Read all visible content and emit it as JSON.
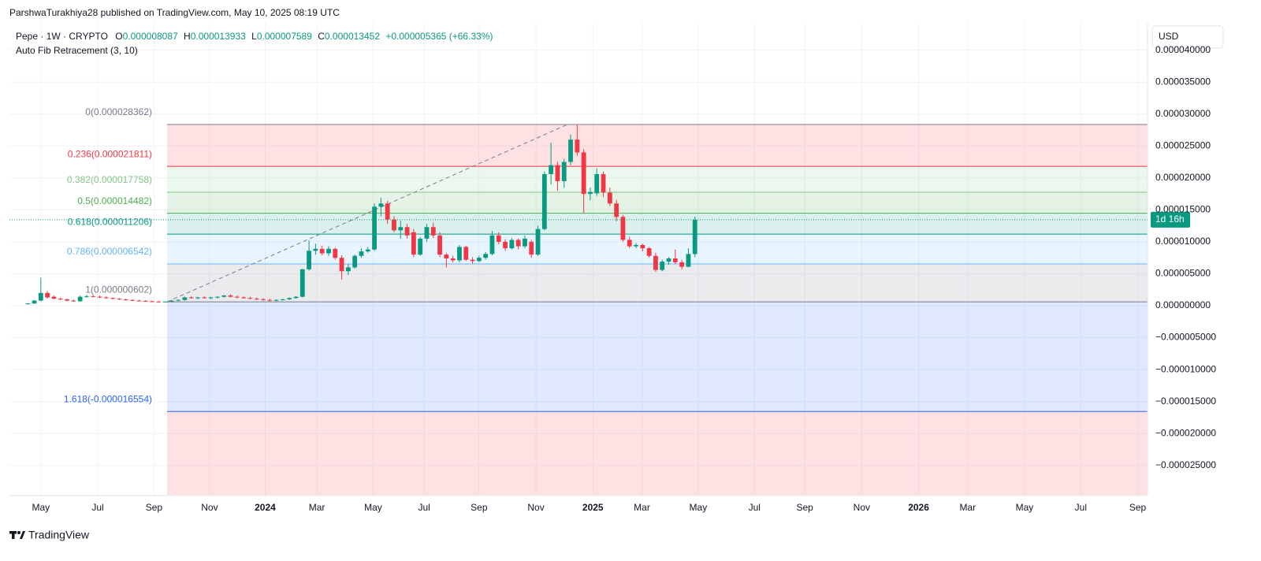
{
  "header": {
    "byline": "ParshwaTurakhiya28 published on TradingView.com, May 10, 2025 08:19 UTC",
    "symbol": "Pepe · 1W · CRYPTO",
    "ohlc": [
      {
        "key": "O",
        "value": "0.000008087"
      },
      {
        "key": "H",
        "value": "0.000013933"
      },
      {
        "key": "L",
        "value": "0.000007589"
      },
      {
        "key": "C",
        "value": "0.000013452"
      }
    ],
    "change": "+0.000005365 (+66.33%)",
    "indicator": "Auto Fib Retracement (3, 10)"
  },
  "currency": "USD",
  "countdown": "1d 16h",
  "brand": "TradingView",
  "chart_data": {
    "type": "candlestick",
    "up_color": "#089981",
    "down_color": "#f23645",
    "grid": true,
    "x": [
      -2,
      -1,
      0,
      1,
      2,
      3,
      4,
      5,
      6,
      7,
      8,
      9,
      10,
      11,
      12,
      13,
      14,
      15,
      16,
      17,
      18,
      19,
      20,
      21,
      22,
      23,
      24,
      25,
      26,
      27,
      28,
      29,
      30,
      31,
      32,
      33,
      34,
      35,
      36,
      37,
      38,
      39,
      40,
      41,
      42,
      43,
      44,
      45,
      46,
      47,
      48,
      49,
      50,
      51,
      52,
      53,
      54,
      55,
      56,
      57,
      58,
      59,
      60,
      61,
      62,
      63,
      64,
      65,
      66,
      67,
      68,
      69,
      70,
      71,
      72,
      73,
      74,
      75,
      76,
      77,
      78,
      79,
      80,
      81,
      82,
      83,
      84,
      85,
      86,
      87,
      88,
      89,
      90,
      91,
      92,
      93,
      94,
      95,
      96,
      97,
      98,
      99,
      100
    ],
    "open": [
      3e-07,
      3.5e-07,
      8e-07,
      2e-06,
      1.4e-06,
      1.1e-06,
      1e-06,
      8e-07,
      7e-07,
      1.4e-06,
      1.5e-06,
      1.4e-06,
      1.3e-06,
      1.2e-06,
      1.1e-06,
      1e-06,
      9e-07,
      8e-07,
      7.5e-07,
      7e-07,
      6.5e-07,
      6.2e-07,
      6.5e-07,
      8e-07,
      9e-07,
      1.3e-06,
      1.2e-06,
      1.3e-06,
      1.2e-06,
      1.3e-06,
      1.4e-06,
      1.6e-06,
      1.4e-06,
      1.3e-06,
      1.2e-06,
      1.1e-06,
      1e-06,
      9e-07,
      8e-07,
      9e-07,
      1e-06,
      1.2e-06,
      1.4e-06,
      5.7e-06,
      8.6e-06,
      8.9e-06,
      8.2e-06,
      8.9e-06,
      7.5e-06,
      5.4e-06,
      6e-06,
      7.8e-06,
      8.5e-06,
      8.8e-06,
      1.55e-05,
      1.6e-05,
      1.35e-05,
      1.18e-05,
      1.23e-05,
      1.15e-05,
      8e-06,
      1.05e-05,
      1.23e-05,
      1.1e-05,
      8e-06,
      7.4e-06,
      7.1e-06,
      9.2e-06,
      7.2e-06,
      7e-06,
      7.5e-06,
      8.1e-06,
      1.1e-05,
      1e-05,
      9e-06,
      1.03e-05,
      9.3e-06,
      1e-05,
      8e-06,
      1.2e-05,
      2.06e-05,
      2.2e-05,
      1.95e-05,
      2.25e-05,
      2.6e-05,
      2.4e-05,
      1.75e-05,
      1.76e-05,
      2.06e-05,
      1.77e-05,
      1.6e-05,
      1.39e-05,
      1.03e-05,
      9.3e-06,
      9.5e-06,
      9e-06,
      7.8e-06,
      5.6e-06,
      6.9e-06,
      7.4e-06,
      6.8e-06,
      6.1e-06,
      8.087e-06
    ],
    "high": [
      4e-07,
      9e-07,
      4.4e-06,
      2.3e-06,
      1.6e-06,
      1.3e-06,
      1.1e-06,
      1e-06,
      1.6e-06,
      1.7e-06,
      1.7e-06,
      1.6e-06,
      1.5e-06,
      1.3e-06,
      1.2e-06,
      1.1e-06,
      1e-06,
      9.5e-07,
      8.5e-07,
      8e-07,
      7.5e-07,
      7e-07,
      9e-07,
      1e-06,
      1.4e-06,
      1.5e-06,
      1.4e-06,
      1.5e-06,
      1.4e-06,
      1.5e-06,
      1.7e-06,
      1.8e-06,
      1.6e-06,
      1.5e-06,
      1.4e-06,
      1.3e-06,
      1.2e-06,
      1.1e-06,
      1e-06,
      1.1e-06,
      1.3e-06,
      1.5e-06,
      5.8e-06,
      1.02e-05,
      9.7e-06,
      9.4e-06,
      9.3e-06,
      9.1e-06,
      7.9e-06,
      6.5e-06,
      8e-06,
      9e-06,
      9.2e-06,
      1.6e-05,
      1.69e-05,
      1.64e-05,
      1.4e-05,
      1.33e-05,
      1.28e-05,
      1.2e-05,
      1.08e-05,
      1.28e-05,
      1.3e-05,
      1.15e-05,
      8.3e-06,
      7.8e-06,
      9.5e-06,
      9.4e-06,
      7.6e-06,
      7.8e-06,
      8.4e-06,
      1.17e-05,
      1.15e-05,
      1.04e-05,
      1.06e-05,
      1.05e-05,
      1.1e-05,
      1.03e-05,
      1.25e-05,
      2.1e-05,
      2.55e-05,
      2.25e-05,
      2.3e-05,
      2.68e-05,
      2.8362e-05,
      2.45e-05,
      1.85e-05,
      2.15e-05,
      2.1e-05,
      1.85e-05,
      1.66e-05,
      1.42e-05,
      1.08e-05,
      9.8e-06,
      9.7e-06,
      9.2e-06,
      8.3e-06,
      7.2e-06,
      7.6e-06,
      8.8e-06,
      7.2e-06,
      9e-06,
      1.3933e-05
    ],
    "low": [
      2e-07,
      3e-07,
      7e-07,
      1.1e-06,
      1e-06,
      9e-07,
      7e-07,
      6e-07,
      6e-07,
      1.2e-06,
      1.3e-06,
      1.2e-06,
      1.1e-06,
      1e-06,
      9e-07,
      8e-07,
      7e-07,
      7e-07,
      6e-07,
      5.5e-07,
      5.5e-07,
      6e-07,
      6e-07,
      7e-07,
      8e-07,
      1.1e-06,
      1e-06,
      1.1e-06,
      1e-06,
      1.1e-06,
      1.3e-06,
      1.3e-06,
      1.2e-06,
      1.1e-06,
      1e-06,
      9e-07,
      8e-07,
      7e-07,
      7e-07,
      8e-07,
      9e-07,
      1.1e-06,
      1.3e-06,
      5.5e-06,
      8e-06,
      7.9e-06,
      7.8e-06,
      7.2e-06,
      4.1e-06,
      4.8e-06,
      5.8e-06,
      7.5e-06,
      8.3e-06,
      8.6e-06,
      1.4e-05,
      1.28e-05,
      1.15e-05,
      1.05e-05,
      1.05e-05,
      7.6e-06,
      7.8e-06,
      1e-05,
      1.06e-05,
      7.6e-06,
      6e-06,
      6.8e-06,
      6.8e-06,
      7e-06,
      6.6e-06,
      6.8e-06,
      7.2e-06,
      7.9e-06,
      9.6e-06,
      8.6e-06,
      8.8e-06,
      8.8e-06,
      9e-06,
      7.5e-06,
      7.8e-06,
      1.18e-05,
      1.9e-05,
      1.8e-05,
      1.85e-05,
      2.2e-05,
      2.35e-05,
      1.45e-05,
      1.65e-05,
      1.72e-05,
      1.7e-05,
      1.56e-05,
      1.32e-05,
      1e-05,
      9e-06,
      9e-06,
      8.5e-06,
      7.5e-06,
      5.3e-06,
      5.4e-06,
      6.4e-06,
      6.5e-06,
      5.7e-06,
      6e-06,
      7.589e-06
    ],
    "close": [
      3.5e-07,
      8e-07,
      2e-06,
      1.3e-06,
      1.1e-06,
      1e-06,
      8e-07,
      7e-07,
      1.4e-06,
      1.5e-06,
      1.4e-06,
      1.3e-06,
      1.2e-06,
      1.1e-06,
      1e-06,
      9e-07,
      8e-07,
      7.5e-07,
      7e-07,
      6.5e-07,
      6.2e-07,
      6.5e-07,
      8e-07,
      9e-07,
      1.3e-06,
      1.2e-06,
      1.3e-06,
      1.2e-06,
      1.3e-06,
      1.4e-06,
      1.6e-06,
      1.4e-06,
      1.3e-06,
      1.2e-06,
      1.1e-06,
      1e-06,
      9e-07,
      8e-07,
      9e-07,
      1e-06,
      1.2e-06,
      1.4e-06,
      5.7e-06,
      8.6e-06,
      8.9e-06,
      8.2e-06,
      8.9e-06,
      7.5e-06,
      5.4e-06,
      6e-06,
      7.8e-06,
      8.5e-06,
      8.8e-06,
      1.55e-05,
      1.6e-05,
      1.35e-05,
      1.18e-05,
      1.23e-05,
      1.1e-05,
      8e-06,
      1.05e-05,
      1.23e-05,
      1.1e-05,
      8e-06,
      7.4e-06,
      7.1e-06,
      9.2e-06,
      7.2e-06,
      7e-06,
      7.5e-06,
      8.1e-06,
      1.1e-05,
      1e-05,
      9e-06,
      1.03e-05,
      9.3e-06,
      1.05e-05,
      8e-06,
      1.2e-05,
      2.06e-05,
      2.2e-05,
      1.95e-05,
      2.25e-05,
      2.6e-05,
      2.4e-05,
      1.75e-05,
      1.78e-05,
      2.06e-05,
      1.77e-05,
      1.6e-05,
      1.39e-05,
      1.03e-05,
      9.3e-06,
      9.5e-06,
      9e-06,
      7.8e-06,
      5.6e-06,
      6.9e-06,
      7.4e-06,
      6.8e-06,
      6.1e-06,
      8.1e-06,
      1.3452e-05
    ],
    "xlim": [
      -4.8,
      169.2
    ],
    "xticks": [
      {
        "value": 0,
        "label": "May"
      },
      {
        "value": 8.7,
        "label": "Jul"
      },
      {
        "value": 17.3,
        "label": "Sep"
      },
      {
        "value": 25.8,
        "label": "Nov"
      },
      {
        "value": 34.3,
        "label": "2024"
      },
      {
        "value": 42.2,
        "label": "Mar"
      },
      {
        "value": 50.8,
        "label": "May"
      },
      {
        "value": 58.6,
        "label": "Jul"
      },
      {
        "value": 67,
        "label": "Sep"
      },
      {
        "value": 75.7,
        "label": "Nov"
      },
      {
        "value": 84.4,
        "label": "2025"
      },
      {
        "value": 91.9,
        "label": "Mar"
      },
      {
        "value": 100.5,
        "label": "May"
      },
      {
        "value": 109.1,
        "label": "Jul"
      },
      {
        "value": 116.8,
        "label": "Sep"
      },
      {
        "value": 125.5,
        "label": "Nov"
      },
      {
        "value": 134.2,
        "label": "2026"
      },
      {
        "value": 141.7,
        "label": "Mar"
      },
      {
        "value": 150.4,
        "label": "May"
      },
      {
        "value": 159,
        "label": "Jul"
      },
      {
        "value": 167.7,
        "label": "Sep"
      }
    ],
    "ylim": [
      -2.96e-05,
      4.44e-05
    ],
    "yticks": [
      {
        "value": -2.5e-05,
        "label": "−0.000025000"
      },
      {
        "value": -2e-05,
        "label": "−0.000020000"
      },
      {
        "value": -1.5e-05,
        "label": "−0.000015000"
      },
      {
        "value": -1e-05,
        "label": "−0.000010000"
      },
      {
        "value": -5e-06,
        "label": "−0.000005000"
      },
      {
        "value": 0,
        "label": "0.000000000"
      },
      {
        "value": 5e-06,
        "label": "0.000005000"
      },
      {
        "value": 1e-05,
        "label": "0.000010000"
      },
      {
        "value": 1.5e-05,
        "label": "0.000015000"
      },
      {
        "value": 2e-05,
        "label": "0.000020000"
      },
      {
        "value": 2.5e-05,
        "label": "0.000025000"
      },
      {
        "value": 3e-05,
        "label": "0.000030000"
      },
      {
        "value": 3.5e-05,
        "label": "0.000035000"
      },
      {
        "value": 4e-05,
        "label": "0.000040000"
      }
    ],
    "fib": {
      "start_x": 19.3,
      "peak_x": 80.5,
      "below_color": "#f23645",
      "levels": [
        {
          "value": 2.8362e-05,
          "label": "0(0.000028362)",
          "color": "#787b86"
        },
        {
          "value": 2.1811e-05,
          "label": "0.236(0.000021811)",
          "color": "#f23645"
        },
        {
          "value": 1.7758e-05,
          "label": "0.382(0.000017758)",
          "color": "#81c784"
        },
        {
          "value": 1.4482e-05,
          "label": "0.5(0.000014482)",
          "color": "#4caf50"
        },
        {
          "value": 1.1206e-05,
          "label": "0.618(0.000011206)",
          "color": "#089981"
        },
        {
          "value": 6.542e-06,
          "label": "0.786(0.000006542)",
          "color": "#64b5f6"
        },
        {
          "value": 6.02e-07,
          "label": "1(0.000000602)",
          "color": "#787b86"
        },
        {
          "value": -1.6554e-05,
          "label": "1.618(-0.000016554)",
          "color": "#2962ff"
        }
      ]
    }
  }
}
